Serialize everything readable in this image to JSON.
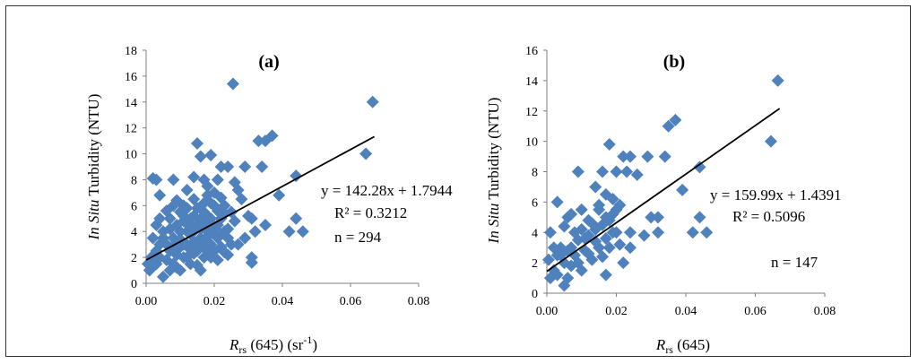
{
  "colors": {
    "marker": "#4F81BD",
    "trend": "#000000",
    "axis": "#7f7f7f",
    "frame": "#333333"
  },
  "chart_data": [
    {
      "type": "scatter",
      "panel_label": "(a)",
      "ylabel_italic": "In Situ",
      "ylabel_rest": " Turbidity (NTU)",
      "xlabel_main": "R",
      "xlabel_sub": "rs",
      "xlabel_rest": " (645) (sr",
      "xlabel_sup": "-1",
      "xlabel_close": ")",
      "xlim": [
        0,
        0.08
      ],
      "ylim": [
        0,
        18
      ],
      "xticks": [
        "0.00",
        "0.02",
        "0.04",
        "0.06",
        "0.08"
      ],
      "yticks": [
        "0",
        "2",
        "4",
        "6",
        "8",
        "10",
        "12",
        "14",
        "16",
        "18"
      ],
      "xtick_values": [
        0,
        0.02,
        0.04,
        0.06,
        0.08
      ],
      "ytick_values": [
        0,
        2,
        4,
        6,
        8,
        10,
        12,
        14,
        16,
        18
      ],
      "equation": "y = 142.28x + 1.7944",
      "r2": "R² = 0.3212",
      "n_label": "n = 294",
      "trend": {
        "slope": 142.28,
        "intercept": 1.7944,
        "x_range": [
          0,
          0.067
        ]
      },
      "points": [
        [
          0.0255,
          15.4
        ],
        [
          0.0665,
          14.0
        ],
        [
          0.037,
          11.4
        ],
        [
          0.035,
          11.0
        ],
        [
          0.033,
          11.0
        ],
        [
          0.015,
          10.8
        ],
        [
          0.0645,
          10.0
        ],
        [
          0.019,
          9.9
        ],
        [
          0.016,
          9.8
        ],
        [
          0.029,
          9.0
        ],
        [
          0.024,
          9.0
        ],
        [
          0.022,
          9.0
        ],
        [
          0.034,
          9.0
        ],
        [
          0.044,
          8.3
        ],
        [
          0.002,
          8.1
        ],
        [
          0.003,
          8.0
        ],
        [
          0.008,
          8.0
        ],
        [
          0.014,
          8.2
        ],
        [
          0.017,
          8.0
        ],
        [
          0.021,
          8.0
        ],
        [
          0.026,
          7.8
        ],
        [
          0.027,
          7.2
        ],
        [
          0.039,
          6.8
        ],
        [
          0.004,
          6.8
        ],
        [
          0.012,
          7.2
        ],
        [
          0.018,
          7.5
        ],
        [
          0.023,
          6.0
        ],
        [
          0.03,
          5.2
        ],
        [
          0.031,
          5.0
        ],
        [
          0.044,
          5.0
        ],
        [
          0.035,
          4.5
        ],
        [
          0.042,
          4.0
        ],
        [
          0.046,
          4.0
        ],
        [
          0.029,
          3.5
        ],
        [
          0.032,
          4.0
        ],
        [
          0.031,
          2.0
        ],
        [
          0.031,
          1.6
        ],
        [
          0.024,
          2.2
        ],
        [
          0.001,
          1.0
        ],
        [
          0.002,
          1.3
        ],
        [
          0.003,
          2.5
        ],
        [
          0.004,
          3.0
        ],
        [
          0.005,
          4.0
        ],
        [
          0.005,
          0.5
        ],
        [
          0.006,
          1.8
        ],
        [
          0.007,
          2.5
        ],
        [
          0.007,
          5.0
        ],
        [
          0.008,
          3.5
        ],
        [
          0.009,
          4.5
        ],
        [
          0.009,
          1.2
        ],
        [
          0.01,
          2.8
        ],
        [
          0.01,
          5.5
        ],
        [
          0.011,
          3.0
        ],
        [
          0.011,
          6.0
        ],
        [
          0.012,
          2.0
        ],
        [
          0.012,
          4.0
        ],
        [
          0.013,
          1.5
        ],
        [
          0.013,
          5.0
        ],
        [
          0.014,
          3.2
        ],
        [
          0.014,
          6.5
        ],
        [
          0.015,
          2.5
        ],
        [
          0.015,
          4.5
        ],
        [
          0.016,
          3.5
        ],
        [
          0.016,
          1.0
        ],
        [
          0.017,
          5.5
        ],
        [
          0.017,
          2.0
        ],
        [
          0.018,
          4.0
        ],
        [
          0.018,
          6.8
        ],
        [
          0.019,
          3.0
        ],
        [
          0.019,
          5.0
        ],
        [
          0.02,
          2.5
        ],
        [
          0.02,
          6.0
        ],
        [
          0.021,
          4.5
        ],
        [
          0.021,
          3.5
        ],
        [
          0.022,
          5.0
        ],
        [
          0.022,
          2.8
        ],
        [
          0.023,
          4.0
        ],
        [
          0.024,
          3.5
        ],
        [
          0.025,
          5.5
        ],
        [
          0.026,
          4.8
        ],
        [
          0.027,
          3.0
        ],
        [
          0.028,
          6.5
        ],
        [
          0.0005,
          1.5
        ],
        [
          0.0015,
          2.0
        ],
        [
          0.002,
          3.5
        ],
        [
          0.003,
          1.5
        ],
        [
          0.004,
          2.0
        ],
        [
          0.006,
          3.0
        ],
        [
          0.008,
          1.5
        ],
        [
          0.009,
          2.2
        ],
        [
          0.01,
          1.0
        ],
        [
          0.011,
          4.8
        ],
        [
          0.012,
          5.8
        ],
        [
          0.013,
          3.8
        ],
        [
          0.014,
          2.3
        ],
        [
          0.015,
          3.0
        ],
        [
          0.016,
          5.0
        ],
        [
          0.017,
          3.2
        ],
        [
          0.018,
          2.5
        ],
        [
          0.019,
          4.6
        ],
        [
          0.02,
          3.8
        ],
        [
          0.021,
          1.8
        ],
        [
          0.006,
          5.6
        ],
        [
          0.007,
          4.2
        ],
        [
          0.008,
          6.0
        ],
        [
          0.009,
          3.2
        ],
        [
          0.01,
          4.0
        ],
        [
          0.011,
          2.0
        ],
        [
          0.012,
          3.0
        ],
        [
          0.013,
          4.5
        ],
        [
          0.014,
          5.2
        ],
        [
          0.015,
          5.8
        ],
        [
          0.016,
          4.2
        ],
        [
          0.017,
          4.6
        ],
        [
          0.018,
          3.6
        ],
        [
          0.019,
          6.2
        ],
        [
          0.02,
          4.4
        ],
        [
          0.022,
          3.8
        ],
        [
          0.023,
          5.4
        ],
        [
          0.024,
          4.2
        ],
        [
          0.025,
          3.0
        ],
        [
          0.003,
          4.5
        ],
        [
          0.004,
          5.0
        ],
        [
          0.005,
          3.5
        ],
        [
          0.007,
          1.0
        ],
        [
          0.008,
          2.8
        ],
        [
          0.009,
          6.4
        ],
        [
          0.01,
          3.4
        ],
        [
          0.011,
          5.2
        ],
        [
          0.012,
          4.6
        ],
        [
          0.013,
          2.6
        ],
        [
          0.014,
          4.0
        ],
        [
          0.015,
          1.4
        ],
        [
          0.016,
          2.8
        ],
        [
          0.017,
          6.2
        ],
        [
          0.018,
          5.2
        ],
        [
          0.019,
          2.0
        ],
        [
          0.02,
          7.0
        ],
        [
          0.021,
          5.6
        ],
        [
          0.022,
          6.6
        ],
        [
          0.023,
          2.4
        ]
      ]
    },
    {
      "type": "scatter",
      "panel_label": "(b)",
      "ylabel_italic": "In Situ",
      "ylabel_rest": " Turbidity (NTU)",
      "xlabel_main": "R",
      "xlabel_sub": "rs",
      "xlabel_rest": " (645)",
      "xlim": [
        0,
        0.08
      ],
      "ylim": [
        0,
        16
      ],
      "xticks": [
        "0.00",
        "0.02",
        "0.04",
        "0.06",
        "0.08"
      ],
      "yticks": [
        "0",
        "2",
        "4",
        "6",
        "8",
        "10",
        "12",
        "14",
        "16"
      ],
      "xtick_values": [
        0,
        0.02,
        0.04,
        0.06,
        0.08
      ],
      "ytick_values": [
        0,
        2,
        4,
        6,
        8,
        10,
        12,
        14,
        16
      ],
      "equation": "y = 159.99x + 1.4391",
      "r2": "R² = 0.5096",
      "n_label": "n = 147",
      "trend": {
        "slope": 159.99,
        "intercept": 1.4391,
        "x_range": [
          0,
          0.067
        ]
      },
      "points": [
        [
          0.0665,
          14.0
        ],
        [
          0.037,
          11.4
        ],
        [
          0.035,
          11.0
        ],
        [
          0.0645,
          10.0
        ],
        [
          0.018,
          9.8
        ],
        [
          0.029,
          9.0
        ],
        [
          0.022,
          9.0
        ],
        [
          0.024,
          9.0
        ],
        [
          0.034,
          9.0
        ],
        [
          0.044,
          8.3
        ],
        [
          0.009,
          8.0
        ],
        [
          0.016,
          8.0
        ],
        [
          0.02,
          8.0
        ],
        [
          0.023,
          8.0
        ],
        [
          0.026,
          7.8
        ],
        [
          0.014,
          7.0
        ],
        [
          0.039,
          6.8
        ],
        [
          0.003,
          6.0
        ],
        [
          0.017,
          6.5
        ],
        [
          0.019,
          6.2
        ],
        [
          0.015,
          5.5
        ],
        [
          0.021,
          5.8
        ],
        [
          0.03,
          5.0
        ],
        [
          0.032,
          5.0
        ],
        [
          0.044,
          5.0
        ],
        [
          0.01,
          5.5
        ],
        [
          0.006,
          5.0
        ],
        [
          0.012,
          4.8
        ],
        [
          0.042,
          4.0
        ],
        [
          0.046,
          4.0
        ],
        [
          0.032,
          4.0
        ],
        [
          0.024,
          4.0
        ],
        [
          0.028,
          3.8
        ],
        [
          0.001,
          4.0
        ],
        [
          0.024,
          3.0
        ],
        [
          0.022,
          2.0
        ],
        [
          0.017,
          1.2
        ],
        [
          0.005,
          0.5
        ],
        [
          0.001,
          1.0
        ],
        [
          0.002,
          1.5
        ],
        [
          0.003,
          2.5
        ],
        [
          0.004,
          3.0
        ],
        [
          0.005,
          2.0
        ],
        [
          0.006,
          1.0
        ],
        [
          0.007,
          3.0
        ],
        [
          0.008,
          2.5
        ],
        [
          0.009,
          3.5
        ],
        [
          0.01,
          1.5
        ],
        [
          0.011,
          2.8
        ],
        [
          0.012,
          3.8
        ],
        [
          0.013,
          2.2
        ],
        [
          0.014,
          4.2
        ],
        [
          0.015,
          3.0
        ],
        [
          0.016,
          4.5
        ],
        [
          0.017,
          3.6
        ],
        [
          0.018,
          4.8
        ],
        [
          0.019,
          5.2
        ],
        [
          0.02,
          4.0
        ],
        [
          0.021,
          3.2
        ],
        [
          0.0005,
          2.2
        ],
        [
          0.002,
          3.0
        ],
        [
          0.003,
          1.2
        ],
        [
          0.004,
          2.5
        ],
        [
          0.006,
          2.8
        ],
        [
          0.007,
          1.8
        ],
        [
          0.008,
          4.0
        ],
        [
          0.009,
          2.0
        ],
        [
          0.011,
          3.6
        ],
        [
          0.012,
          2.6
        ],
        [
          0.013,
          4.6
        ],
        [
          0.014,
          3.4
        ],
        [
          0.016,
          2.4
        ],
        [
          0.018,
          3.0
        ],
        [
          0.019,
          4.0
        ],
        [
          0.02,
          5.5
        ],
        [
          0.005,
          4.4
        ],
        [
          0.007,
          5.2
        ],
        [
          0.01,
          4.2
        ],
        [
          0.015,
          5.8
        ],
        [
          0.017,
          5.0
        ]
      ]
    }
  ]
}
